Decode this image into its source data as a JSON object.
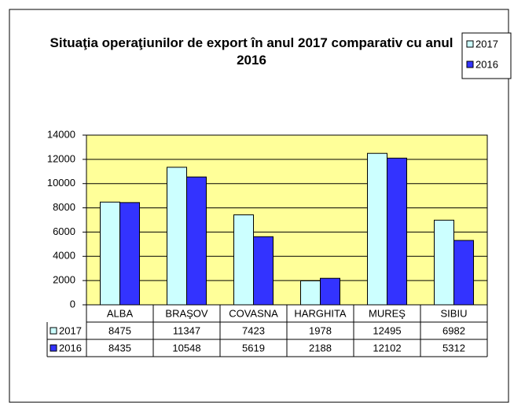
{
  "chart_data": {
    "type": "bar",
    "title": "Situaţia operaţiunilor de export în anul 2017 comparativ cu anul 2016",
    "categories": [
      "ALBA",
      "BRAŞOV",
      "COVASNA",
      "HARGHITA",
      "MUREŞ",
      "SIBIU"
    ],
    "series": [
      {
        "name": "2017",
        "color": "#ccffff",
        "values": [
          8475,
          11347,
          7423,
          1978,
          12495,
          6982
        ]
      },
      {
        "name": "2016",
        "color": "#3333ff",
        "values": [
          8435,
          10548,
          5619,
          2188,
          12102,
          5312
        ]
      }
    ],
    "ylim": [
      0,
      14000
    ],
    "yticks": [
      0,
      2000,
      4000,
      6000,
      8000,
      10000,
      12000,
      14000
    ],
    "grid": true,
    "legend": "top-right",
    "plot_background": "#ffff99"
  }
}
